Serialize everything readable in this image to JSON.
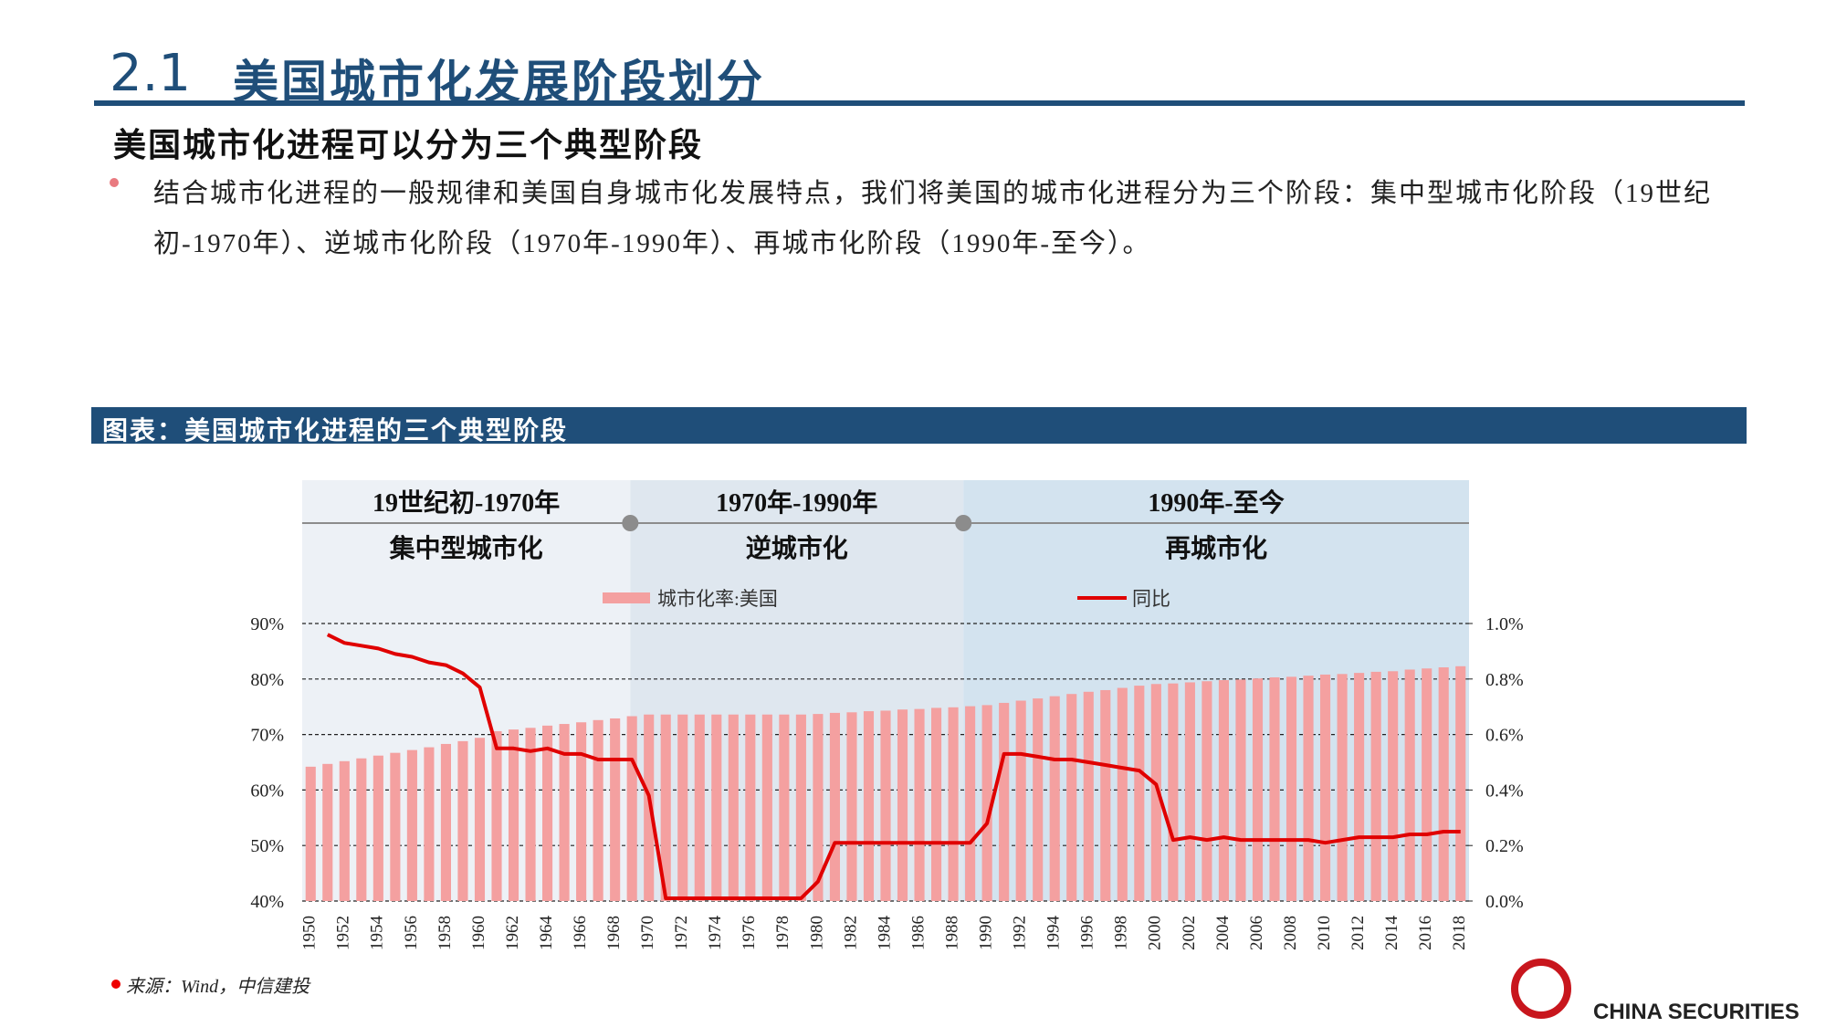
{
  "header": {
    "number": "2.1",
    "title": "美国城市化发展阶段划分"
  },
  "subtitle": "美国城市化进程可以分为三个典型阶段",
  "bullet": "结合城市化进程的一般规律和美国自身城市化发展特点，我们将美国的城市化进程分为三个阶段：集中型城市化阶段（19世纪初-1970年）、逆城市化阶段（1970年-1990年）、再城市化阶段（1990年-至今）。",
  "figure_title": "图表：美国城市化进程的三个典型阶段",
  "source": "来源：Wind，中信建投",
  "logo": "CHINA SECURITIES",
  "chart_data": {
    "type": "bar-line",
    "phases": [
      {
        "period": "19世纪初-1970年",
        "name": "集中型城市化"
      },
      {
        "period": "1970年-1990年",
        "name": "逆城市化"
      },
      {
        "period": "1990年-至今",
        "name": "再城市化"
      }
    ],
    "categories": [
      "1950",
      null,
      "1952",
      null,
      "1954",
      null,
      "1956",
      null,
      "1958",
      null,
      "1960",
      null,
      "1962",
      null,
      "1964",
      null,
      "1966",
      null,
      "1968",
      null,
      "1970",
      null,
      "1972",
      null,
      "1974",
      null,
      "1976",
      null,
      "1978",
      null,
      "1980",
      null,
      "1982",
      null,
      "1984",
      null,
      "1986",
      null,
      "1988",
      null,
      "1990",
      null,
      "1992",
      null,
      "1994",
      null,
      "1996",
      null,
      "1998",
      null,
      "2000",
      null,
      "2002",
      null,
      "2004",
      null,
      "2006",
      null,
      "2008",
      null,
      "2010",
      null,
      "2012",
      null,
      "2014",
      null,
      "2016",
      null,
      "2018"
    ],
    "series": [
      {
        "name": "城市化率:美国",
        "type": "bar",
        "color": "#f4a0a0",
        "values": [
          64.2,
          64.7,
          65.2,
          65.7,
          66.2,
          66.7,
          67.2,
          67.7,
          68.3,
          68.8,
          69.4,
          70.6,
          70.9,
          71.2,
          71.6,
          71.9,
          72.2,
          72.6,
          72.9,
          73.3,
          73.6,
          73.6,
          73.6,
          73.6,
          73.6,
          73.6,
          73.6,
          73.6,
          73.6,
          73.6,
          73.7,
          73.9,
          74.0,
          74.2,
          74.3,
          74.5,
          74.6,
          74.8,
          74.9,
          75.1,
          75.3,
          75.7,
          76.1,
          76.5,
          76.9,
          77.3,
          77.7,
          78.0,
          78.4,
          78.8,
          79.1,
          79.2,
          79.4,
          79.6,
          79.8,
          79.9,
          80.1,
          80.3,
          80.4,
          80.6,
          80.8,
          80.9,
          81.1,
          81.3,
          81.4,
          81.7,
          81.9,
          82.1,
          82.3
        ]
      },
      {
        "name": "同比",
        "type": "line",
        "axis": "y2",
        "color": "#e00000",
        "values": [
          null,
          0.96,
          0.93,
          0.92,
          0.91,
          0.89,
          0.88,
          0.86,
          0.85,
          0.82,
          0.77,
          0.55,
          0.55,
          0.54,
          0.55,
          0.53,
          0.53,
          0.51,
          0.51,
          0.51,
          0.38,
          0.01,
          0.01,
          0.01,
          0.01,
          0.01,
          0.01,
          0.01,
          0.01,
          0.01,
          0.07,
          0.21,
          0.21,
          0.21,
          0.21,
          0.21,
          0.21,
          0.21,
          0.21,
          0.21,
          0.28,
          0.53,
          0.53,
          0.52,
          0.51,
          0.51,
          0.5,
          0.49,
          0.48,
          0.47,
          0.42,
          0.22,
          0.23,
          0.22,
          0.23,
          0.22,
          0.22,
          0.22,
          0.22,
          0.22,
          0.21,
          0.22,
          0.23,
          0.23,
          0.23,
          0.24,
          0.24,
          0.25,
          0.25
        ]
      }
    ],
    "ylim": [
      40,
      90
    ],
    "yticks": [
      {
        "value": 40,
        "label": "40%"
      },
      {
        "value": 50,
        "label": "50%"
      },
      {
        "value": 60,
        "label": "60%"
      },
      {
        "value": 70,
        "label": "70%"
      },
      {
        "value": 80,
        "label": "80%"
      },
      {
        "value": 90,
        "label": "90%"
      }
    ],
    "y2lim": [
      0,
      1.0
    ],
    "y2ticks": [
      {
        "value": 0,
        "label": "0.0%"
      },
      {
        "value": 0.2,
        "label": "0.2%"
      },
      {
        "value": 0.4,
        "label": "0.4%"
      },
      {
        "value": 0.6,
        "label": "0.6%"
      },
      {
        "value": 0.8,
        "label": "0.8%"
      },
      {
        "value": 1.0,
        "label": "1.0%"
      }
    ],
    "grid": true
  }
}
